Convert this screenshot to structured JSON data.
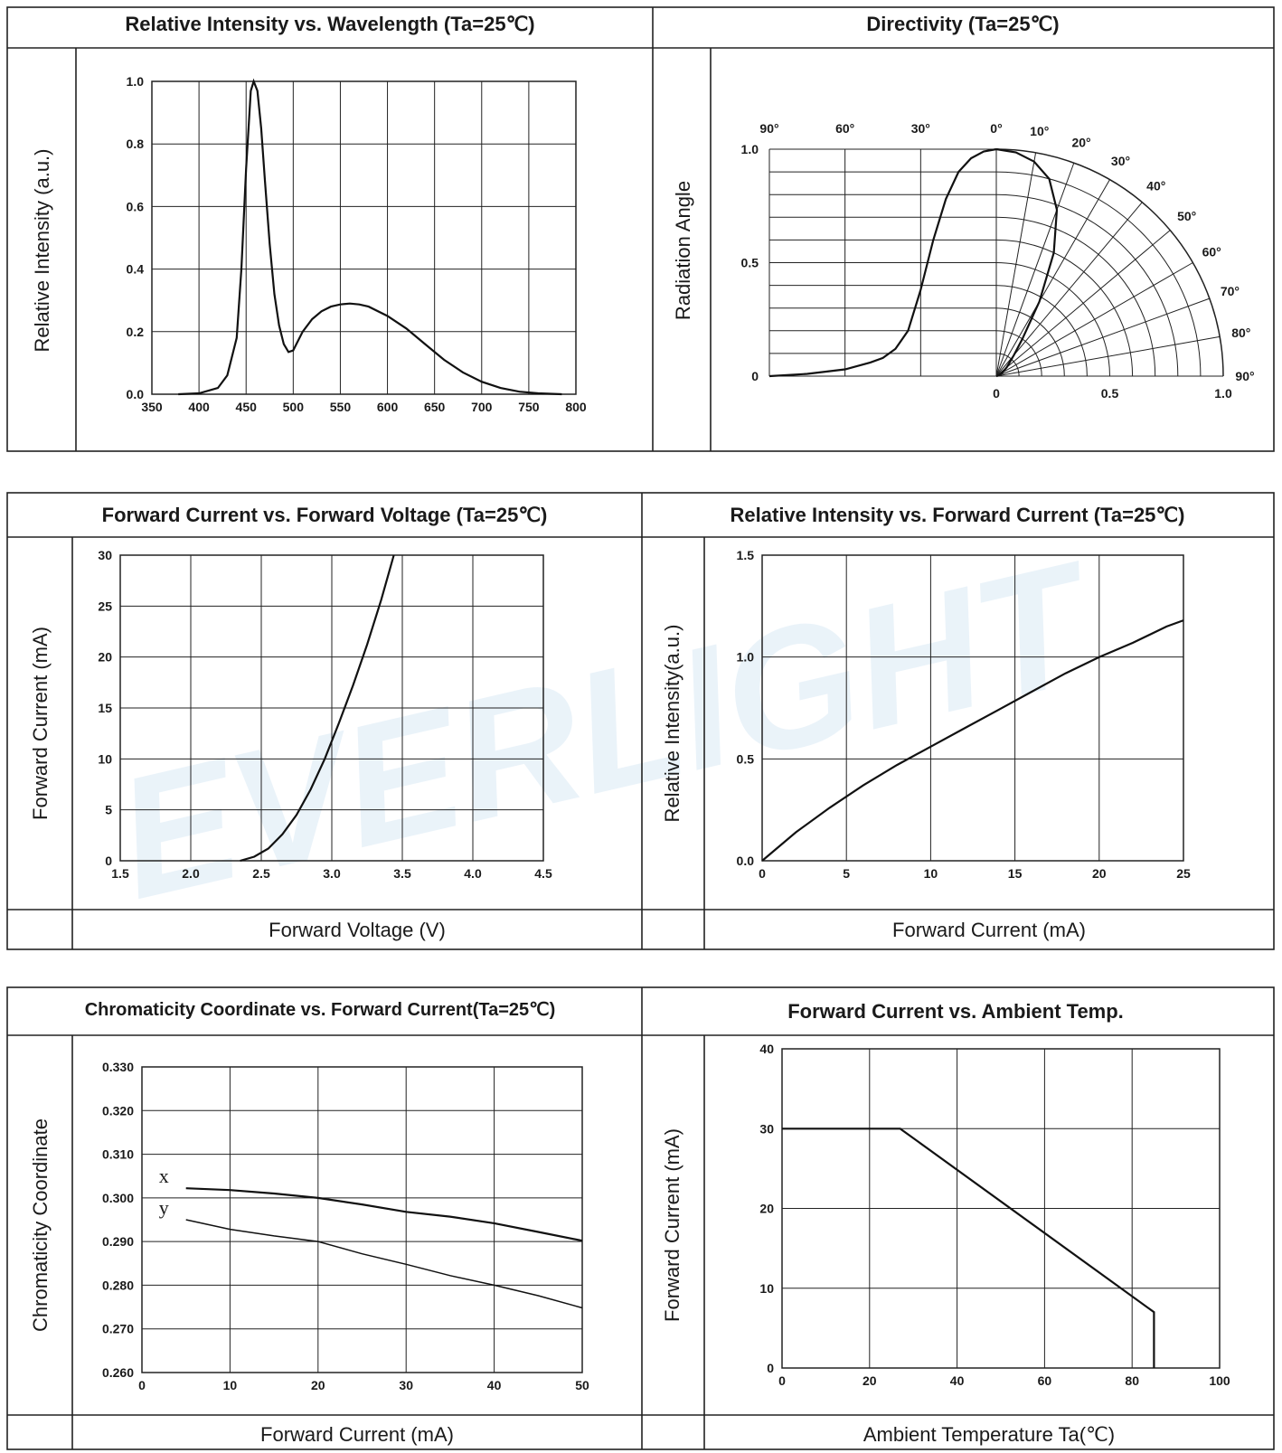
{
  "watermark": "EVERLIGHT",
  "panels": [
    {
      "id": "spectrum",
      "title": "Relative Intensity vs. Wavelength (Ta=25℃)",
      "ylabel": "Relative Intensity (a.u.)",
      "xlabel": "",
      "chart_data": {
        "type": "line",
        "title": "Relative Intensity vs. Wavelength (Ta=25℃)",
        "ylabel": "Relative Intensity (a.u.)",
        "xlabel": "",
        "xlim": [
          350,
          800
        ],
        "ylim": [
          0,
          1.0
        ],
        "xticks": [
          "350",
          "400",
          "450",
          "500",
          "550",
          "600",
          "650",
          "700",
          "750",
          "800"
        ],
        "yticks": [
          "0.0",
          "0.2",
          "0.4",
          "0.6",
          "0.8",
          "1.0"
        ],
        "grid": true,
        "series": [
          {
            "x": [
              378,
              400,
              420,
              430,
              440,
              445,
              450,
              455,
              458,
              462,
              466,
              470,
              475,
              480,
              485,
              490,
              495,
              500,
              505,
              510,
              520,
              530,
              540,
              550,
              560,
              570,
              580,
              600,
              620,
              640,
              660,
              680,
              700,
              720,
              740,
              760,
              785
            ],
            "y": [
              0.0,
              0.003,
              0.02,
              0.06,
              0.18,
              0.4,
              0.72,
              0.97,
              1.0,
              0.97,
              0.85,
              0.68,
              0.48,
              0.32,
              0.22,
              0.16,
              0.135,
              0.14,
              0.17,
              0.2,
              0.24,
              0.265,
              0.28,
              0.287,
              0.29,
              0.287,
              0.28,
              0.25,
              0.21,
              0.16,
              0.11,
              0.07,
              0.04,
              0.02,
              0.008,
              0.003,
              0.0
            ]
          }
        ]
      }
    },
    {
      "id": "directivity",
      "title": "Directivity (Ta=25℃)",
      "ylabel": "Radiation Angle",
      "xlabel": "",
      "chart_data": {
        "type": "line",
        "title": "Directivity (Ta=25℃)",
        "ylabel": "Radiation Angle",
        "xlabel": "",
        "left_angle_labels": [
          "90°",
          "60°",
          "30°",
          "0°"
        ],
        "polar_angle_labels": [
          "10°",
          "20°",
          "30°",
          "40°",
          "50°",
          "60°",
          "70°",
          "80°",
          "90°"
        ],
        "yticks": [
          "0",
          "0.5",
          "1.0"
        ],
        "radial_ticks": [
          "0",
          "0.5",
          "1.0"
        ],
        "grid": true,
        "series": [
          {
            "x_deg": [
              90,
              75,
              60,
              50,
              45,
              40,
              35,
              30,
              25,
              20,
              15,
              10,
              5,
              0
            ],
            "y": [
              0.0,
              0.01,
              0.03,
              0.06,
              0.08,
              0.12,
              0.2,
              0.38,
              0.6,
              0.78,
              0.9,
              0.96,
              0.99,
              1.0
            ]
          }
        ]
      }
    },
    {
      "id": "iv",
      "title": "Forward Current vs. Forward Voltage (Ta=25℃)",
      "ylabel": "Forward Current (mA)",
      "xlabel": "Forward Voltage (V)",
      "chart_data": {
        "type": "line",
        "title": "Forward Current vs. Forward Voltage (Ta=25℃)",
        "xlabel": "Forward Voltage (V)",
        "ylabel": "Forward Current (mA)",
        "xlim": [
          1.5,
          4.5
        ],
        "ylim": [
          0,
          30
        ],
        "xticks": [
          "1.5",
          "2.0",
          "2.5",
          "3.0",
          "3.5",
          "4.0",
          "4.5"
        ],
        "yticks": [
          "0",
          "5",
          "10",
          "15",
          "20",
          "25",
          "30"
        ],
        "grid": true,
        "series": [
          {
            "x": [
              2.35,
              2.45,
              2.55,
              2.65,
              2.75,
              2.85,
              2.95,
              3.05,
              3.15,
              3.25,
              3.35,
              3.44
            ],
            "y": [
              0,
              0.4,
              1.2,
              2.6,
              4.5,
              7,
              10,
              13.5,
              17.2,
              21.2,
              25.6,
              30
            ]
          }
        ]
      }
    },
    {
      "id": "li",
      "title": "Relative Intensity vs. Forward Current (Ta=25℃)",
      "ylabel": "Relative Intensity(a.u.)",
      "xlabel": "Forward Current (mA)",
      "chart_data": {
        "type": "line",
        "title": "Relative Intensity vs. Forward Current (Ta=25℃)",
        "xlabel": "Forward Current (mA)",
        "ylabel": "Relative Intensity(a.u.)",
        "xlim": [
          0,
          25
        ],
        "ylim": [
          0,
          1.5
        ],
        "xticks": [
          "0",
          "5",
          "10",
          "15",
          "20",
          "25"
        ],
        "yticks": [
          "0.0",
          "0.5",
          "1.0",
          "1.5"
        ],
        "grid": true,
        "series": [
          {
            "x": [
              0,
              2,
              4,
              6,
              8,
              10,
              12,
              14,
              16,
              18,
              20,
              22,
              24,
              25
            ],
            "y": [
              0,
              0.14,
              0.26,
              0.37,
              0.47,
              0.56,
              0.65,
              0.74,
              0.83,
              0.92,
              1.0,
              1.07,
              1.15,
              1.18
            ]
          }
        ]
      }
    },
    {
      "id": "chroma",
      "title": "Chromaticity Coordinate vs. Forward Current(Ta=25℃)",
      "ylabel": "Chromaticity Coordinate",
      "xlabel": "Forward Current (mA)",
      "chart_data": {
        "type": "line",
        "title": "Chromaticity Coordinate vs. Forward Current(Ta=25℃)",
        "xlabel": "Forward Current (mA)",
        "ylabel": "Chromaticity Coordinate",
        "xlim": [
          0,
          50
        ],
        "ylim": [
          0.26,
          0.33
        ],
        "xticks": [
          "0",
          "10",
          "20",
          "30",
          "40",
          "50"
        ],
        "yticks": [
          "0.260",
          "0.270",
          "0.280",
          "0.290",
          "0.300",
          "0.310",
          "0.320",
          "0.330"
        ],
        "grid": true,
        "series": [
          {
            "name": "x",
            "x": [
              5,
              10,
              15,
              20,
              25,
              30,
              35,
              40,
              45,
              50
            ],
            "y": [
              0.3022,
              0.3018,
              0.301,
              0.3,
              0.2985,
              0.2968,
              0.2957,
              0.2942,
              0.2922,
              0.2902
            ]
          },
          {
            "name": "y",
            "x": [
              5,
              10,
              15,
              20,
              25,
              30,
              35,
              40,
              45,
              50
            ],
            "y": [
              0.295,
              0.2928,
              0.2913,
              0.29,
              0.2872,
              0.2848,
              0.2822,
              0.28,
              0.2776,
              0.2748
            ]
          }
        ]
      }
    },
    {
      "id": "derating",
      "title": "Forward Current vs. Ambient Temp.",
      "ylabel": "Forward Current (mA)",
      "xlabel": "Ambient Temperature Ta(℃)",
      "chart_data": {
        "type": "line",
        "title": "Forward Current vs. Ambient Temp.",
        "xlabel": "Ambient Temperature Ta(℃)",
        "ylabel": "Forward Current (mA)",
        "xlim": [
          0,
          100
        ],
        "ylim": [
          0,
          40
        ],
        "xticks": [
          "0",
          "20",
          "40",
          "60",
          "80",
          "100"
        ],
        "yticks": [
          "0",
          "10",
          "20",
          "30",
          "40"
        ],
        "grid": true,
        "series": [
          {
            "x": [
              0,
              27,
              85,
              85
            ],
            "y": [
              30,
              30,
              7,
              0
            ]
          }
        ]
      }
    }
  ]
}
